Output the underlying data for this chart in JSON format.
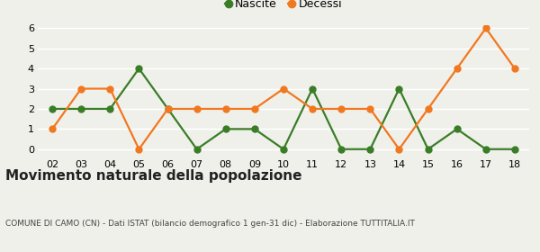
{
  "years": [
    "02",
    "03",
    "04",
    "05",
    "06",
    "07",
    "08",
    "09",
    "10",
    "11",
    "12",
    "13",
    "14",
    "15",
    "16",
    "17",
    "18"
  ],
  "nascite": [
    2,
    2,
    2,
    4,
    2,
    0,
    1,
    1,
    0,
    3,
    0,
    0,
    3,
    0,
    1,
    0,
    0
  ],
  "decessi": [
    1,
    3,
    3,
    0,
    2,
    2,
    2,
    2,
    3,
    2,
    2,
    2,
    0,
    2,
    4,
    6,
    4
  ],
  "nascite_color": "#3a7d27",
  "decessi_color": "#f07820",
  "title": "Movimento naturale della popolazione",
  "subtitle": "COMUNE DI CAMO (CN) - Dati ISTAT (bilancio demografico 1 gen-31 dic) - Elaborazione TUTTITALIA.IT",
  "legend_nascite": "Nascite",
  "legend_decessi": "Decessi",
  "ylim_min": 0,
  "ylim_max": 6,
  "yticks": [
    0,
    1,
    2,
    3,
    4,
    5,
    6
  ],
  "bg_color": "#f0f0eb",
  "grid_color": "#ffffff",
  "marker_size": 5,
  "line_width": 1.6,
  "tick_fontsize": 8,
  "title_fontsize": 11,
  "subtitle_fontsize": 6.5
}
